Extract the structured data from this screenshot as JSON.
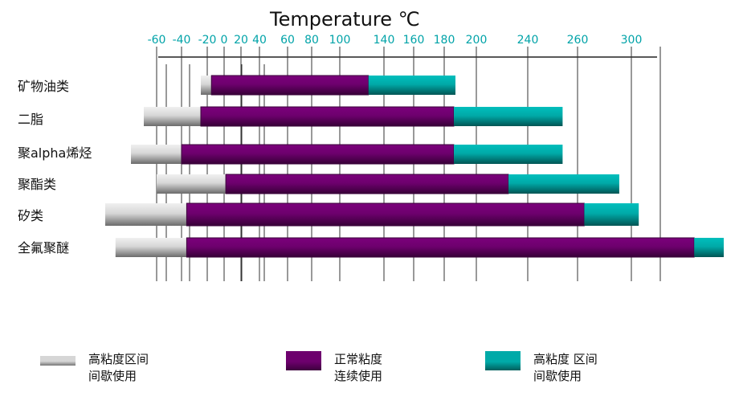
{
  "chart_data": {
    "type": "bar",
    "title": "Temperature ℃",
    "x_ticks": [
      "-60",
      "-40",
      "-20",
      "0",
      "20",
      "40",
      "60",
      "80",
      "100",
      "140",
      "160",
      "180",
      "200",
      "240",
      "260",
      "300"
    ],
    "categories": [
      "矿物油类",
      "二脂",
      "聚alpha烯烃",
      "聚酯类",
      "矽类",
      "全氟聚醚"
    ],
    "series": [
      {
        "name": "高粘度区间 间歇使用",
        "color": "#d6d6d6",
        "ranges": [
          [
            -25,
            -15
          ],
          [
            -65,
            -25
          ],
          [
            -70,
            -40
          ],
          [
            -60,
            2
          ],
          [
            -80,
            -36
          ],
          [
            -76,
            -36
          ]
        ]
      },
      {
        "name": "正常粘度 连续使用",
        "color": "#6e006e",
        "ranges": [
          [
            -15,
            126
          ],
          [
            -25,
            186
          ],
          [
            -40,
            186
          ],
          [
            2,
            225
          ],
          [
            -36,
            265
          ],
          [
            -36,
            334
          ]
        ]
      },
      {
        "name": "高粘度 区间 间歇使用",
        "color": "#00aaa8",
        "ranges": [
          [
            126,
            187
          ],
          [
            186,
            254
          ],
          [
            186,
            254
          ],
          [
            225,
            291
          ],
          [
            265,
            304
          ],
          [
            334,
            350
          ]
        ]
      }
    ]
  },
  "legend": [
    {
      "line1": "高粘度区间",
      "line2": "间歇使用",
      "color": "#d6d6d6"
    },
    {
      "line1": "正常粘度",
      "line2": "连续使用",
      "color": "#6e006e"
    },
    {
      "line1": "高粘度 区间",
      "line2": "间歇使用",
      "color": "#00aaa8"
    }
  ]
}
